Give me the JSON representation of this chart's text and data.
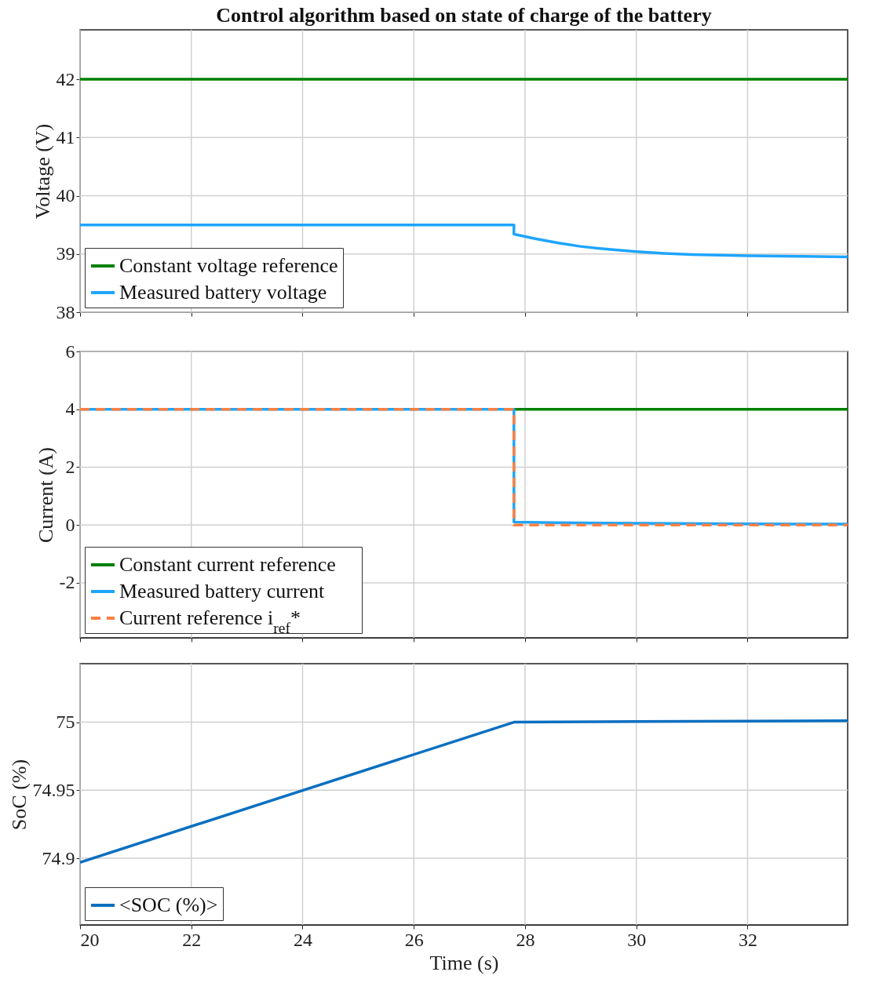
{
  "chart_data": [
    {
      "type": "line",
      "title": "Control algorithm based on state of charge of the battery",
      "ylabel": "Voltage (V)",
      "xlim": [
        20,
        33.8
      ],
      "xticks": [
        20,
        22,
        24,
        26,
        28,
        30,
        32
      ],
      "ylim": [
        38,
        42.85
      ],
      "yticks": [
        38,
        39,
        40,
        41,
        42
      ],
      "grid": true,
      "legend": "bottom left",
      "tick_labels": "y",
      "series": [
        {
          "name": "Constant voltage reference",
          "color": "#008000",
          "line_style": "solid",
          "x": [
            20,
            33.8
          ],
          "values": [
            42,
            42
          ]
        },
        {
          "name": "Measured battery voltage",
          "color": "#1ea5ff",
          "line_style": "solid",
          "x": [
            20,
            27.8,
            27.8,
            28.2,
            28.6,
            29,
            29.5,
            30,
            30.5,
            31,
            32,
            33,
            33.8
          ],
          "values": [
            39.5,
            39.5,
            39.34,
            39.26,
            39.19,
            39.13,
            39.08,
            39.04,
            39.01,
            38.99,
            38.97,
            38.96,
            38.95
          ]
        }
      ]
    },
    {
      "type": "line",
      "ylabel": "Current (A)",
      "xlim": [
        20,
        33.8
      ],
      "xticks": [
        20,
        22,
        24,
        26,
        28,
        30,
        32
      ],
      "ylim": [
        -3.9,
        6
      ],
      "yticks": [
        -2,
        0,
        2,
        4,
        6
      ],
      "grid": true,
      "legend": "bottom left",
      "tick_labels": "y",
      "series": [
        {
          "name": "Constant current reference",
          "color": "#008000",
          "line_style": "solid",
          "x": [
            27.8,
            33.8
          ],
          "values": [
            4,
            4
          ]
        },
        {
          "name": "Measured battery current",
          "color": "#1ea5ff",
          "line_style": "solid",
          "x": [
            20,
            27.8,
            27.8,
            28.5,
            30,
            32,
            33.8
          ],
          "values": [
            4,
            4,
            0.1,
            0.08,
            0.06,
            0.04,
            0.03
          ]
        },
        {
          "name": "Current reference i$_{ref}$*",
          "color": "#ff7f3f",
          "line_style": "dashed",
          "x": [
            20,
            27.8,
            27.8,
            33.8
          ],
          "values": [
            4,
            4,
            0,
            0
          ]
        }
      ]
    },
    {
      "type": "line",
      "ylabel": "SoC (%)",
      "xlabel": "Time (s)",
      "xlim": [
        20,
        33.8
      ],
      "xticks": [
        20,
        22,
        24,
        26,
        28,
        30,
        32
      ],
      "ylim": [
        74.851,
        75.043
      ],
      "yticks": [
        74.9,
        74.95,
        75
      ],
      "grid": true,
      "legend": "bottom left",
      "series": [
        {
          "name": "<SOC (%)>",
          "color": "#0a6fc0",
          "line_style": "solid",
          "x": [
            20,
            27.8,
            30,
            33.8
          ],
          "values": [
            74.897,
            75.0,
            75.0005,
            75.001
          ]
        }
      ]
    }
  ]
}
